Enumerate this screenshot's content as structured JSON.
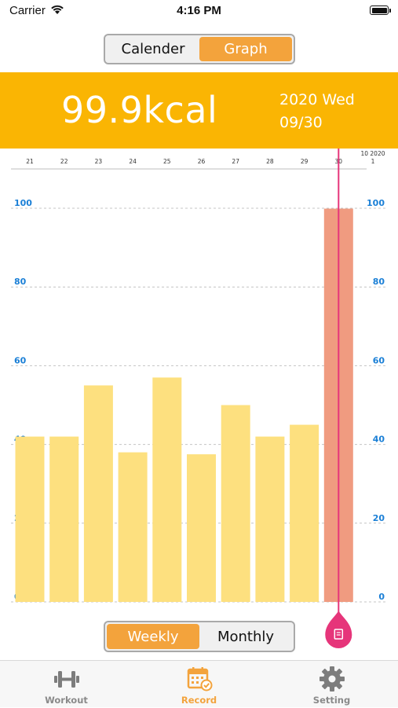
{
  "status_bar": {
    "carrier": "Carrier",
    "time": "4:16 PM"
  },
  "view_toggle": {
    "options": [
      "Calender",
      "Graph"
    ],
    "selected": "Graph"
  },
  "summary": {
    "value": "99.9kcal",
    "date_line1": "2020 Wed",
    "date_line2": "09/30"
  },
  "period_toggle": {
    "options": [
      "Weekly",
      "Monthly"
    ],
    "selected": "Weekly"
  },
  "tabs": [
    {
      "label": "Workout",
      "icon": "dumbbell-icon",
      "active": false
    },
    {
      "label": "Record",
      "icon": "calendar-check-icon",
      "active": true
    },
    {
      "label": "Setting",
      "icon": "gear-icon",
      "active": false
    }
  ],
  "colors": {
    "accent": "#f3a33c",
    "banner": "#fab503",
    "bar": "#fde07f",
    "bar_selected": "#f09b80",
    "marker": "#e6357a",
    "axis_label": "#1a7fd6"
  },
  "chart_data": {
    "type": "bar",
    "categories": [
      "21",
      "22",
      "23",
      "24",
      "25",
      "26",
      "27",
      "28",
      "29",
      "30"
    ],
    "values": [
      42,
      42,
      55,
      38,
      57,
      37.5,
      50,
      42,
      45,
      99.9
    ],
    "selected_index": 9,
    "month_marker": {
      "label_top": "10 2020",
      "label_bottom": "1"
    },
    "ylim": [
      0,
      100
    ],
    "yticks": [
      0,
      20,
      40,
      60,
      80,
      100
    ],
    "grid": true
  }
}
